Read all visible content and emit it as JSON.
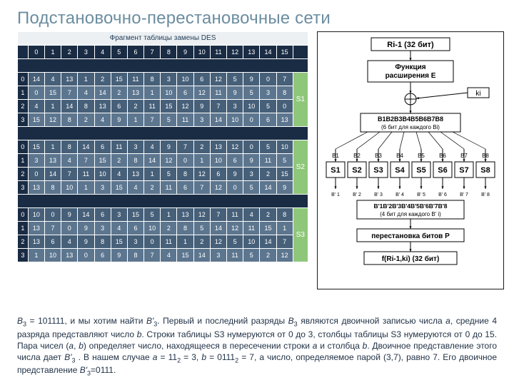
{
  "title": "Подстановочно-перестановочные сети",
  "table": {
    "caption": "Фрагмент таблицы замены DES",
    "columns": [
      "0",
      "1",
      "2",
      "3",
      "4",
      "5",
      "6",
      "7",
      "8",
      "9",
      "10",
      "11",
      "12",
      "13",
      "14",
      "15"
    ],
    "blocks": [
      {
        "label": "S1",
        "rows": [
          [
            14,
            4,
            13,
            1,
            2,
            15,
            11,
            8,
            3,
            10,
            6,
            12,
            5,
            9,
            0,
            7
          ],
          [
            0,
            15,
            7,
            4,
            14,
            2,
            13,
            1,
            10,
            6,
            12,
            11,
            9,
            5,
            3,
            8
          ],
          [
            4,
            1,
            14,
            8,
            13,
            6,
            2,
            11,
            15,
            12,
            9,
            7,
            3,
            10,
            5,
            0
          ],
          [
            15,
            12,
            8,
            2,
            4,
            9,
            1,
            7,
            5,
            11,
            3,
            14,
            10,
            0,
            6,
            13
          ]
        ]
      },
      {
        "label": "S2",
        "rows": [
          [
            15,
            1,
            8,
            14,
            6,
            11,
            3,
            4,
            9,
            7,
            2,
            13,
            12,
            0,
            5,
            10
          ],
          [
            3,
            13,
            4,
            7,
            15,
            2,
            8,
            14,
            12,
            0,
            1,
            10,
            6,
            9,
            11,
            5
          ],
          [
            0,
            14,
            7,
            11,
            10,
            4,
            13,
            1,
            5,
            8,
            12,
            6,
            9,
            3,
            2,
            15
          ],
          [
            13,
            8,
            10,
            1,
            3,
            15,
            4,
            2,
            11,
            6,
            7,
            12,
            0,
            5,
            14,
            9
          ]
        ]
      },
      {
        "label": "S3",
        "rows": [
          [
            10,
            0,
            9,
            14,
            6,
            3,
            15,
            5,
            1,
            13,
            12,
            7,
            11,
            4,
            2,
            8
          ],
          [
            13,
            7,
            0,
            9,
            3,
            4,
            6,
            10,
            2,
            8,
            5,
            14,
            12,
            11,
            15,
            1
          ],
          [
            13,
            6,
            4,
            9,
            8,
            15,
            3,
            0,
            11,
            1,
            2,
            12,
            5,
            10,
            14,
            7
          ],
          [
            1,
            10,
            13,
            0,
            6,
            9,
            8,
            7,
            4,
            15,
            14,
            3,
            11,
            5,
            2,
            12
          ]
        ]
      }
    ]
  },
  "diagram": {
    "top_label": "Ri-1 (32 бит)",
    "expansion": "Функция расширения E",
    "key_label": "ki",
    "xor_out": "B1B2B3B4B5B6B7B8\n(6 бит для каждого Bi)",
    "b_labels_top": [
      "B1",
      "B2",
      "B3",
      "B4",
      "B5",
      "B6",
      "B7",
      "B8"
    ],
    "sboxes": [
      "S1",
      "S2",
      "S3",
      "S4",
      "S5",
      "S6",
      "S7",
      "S8"
    ],
    "b_labels_bot": [
      "B' 1",
      "B' 2",
      "B' 3",
      "B' 4",
      "B' 5",
      "B' 6",
      "B' 7",
      "B' 8"
    ],
    "xor_in": "B'1B'2B'3B'4B'5B'6B'7B'8\n(4 бит для каждого B' i)",
    "perm": "перестановка битов P",
    "output": "f(Ri-1,ki) (32 бит)",
    "colors": {
      "stroke": "#000000",
      "fill": "#ffffff",
      "text": "#000000"
    }
  },
  "paragraph_prefix": "B",
  "paragraph": "= 101111, и мы хотим найти B'"
}
